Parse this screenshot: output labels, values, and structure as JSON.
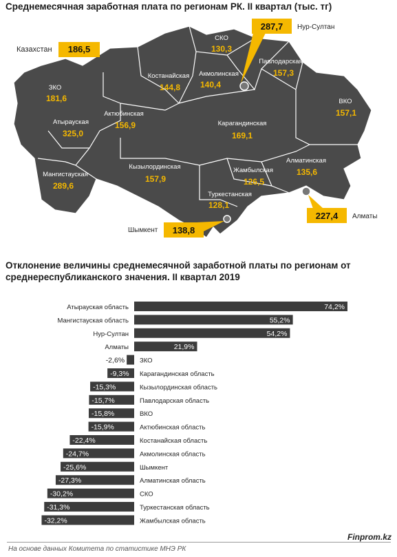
{
  "titles": {
    "map": "Среднемесячная заработная плата по регионам РК. II квартал (тыс. тг)",
    "bars": "Отклонение величины среднемесячной заработной платы по регионам от среднереспубликанского значения. II квартал 2019"
  },
  "national": {
    "label": "Казахстан",
    "value": "186,5"
  },
  "map_regions": [
    {
      "name": "СКО",
      "value": "130,3"
    },
    {
      "name": "Павлодарская",
      "value": "157,3"
    },
    {
      "name": "Костанайская",
      "value": "144,8"
    },
    {
      "name": "Акмолинская",
      "value": "140,4"
    },
    {
      "name": "ЗКО",
      "value": "181,6"
    },
    {
      "name": "ВКО",
      "value": "157,1"
    },
    {
      "name": "Актюбинская",
      "value": "156,9"
    },
    {
      "name": "Атырауская",
      "value": "325,0"
    },
    {
      "name": "Карагандинская",
      "value": "169,1"
    },
    {
      "name": "Алматинская",
      "value": "135,6"
    },
    {
      "name": "Мангистауская",
      "value": "289,6"
    },
    {
      "name": "Кызылординская",
      "value": "157,9"
    },
    {
      "name": "Жамбылская",
      "value": "126,5"
    },
    {
      "name": "Туркестанская",
      "value": "128,1"
    }
  ],
  "map_cities": [
    {
      "name": "Нур-Султан",
      "value": "287,7"
    },
    {
      "name": "Алматы",
      "value": "227,4"
    },
    {
      "name": "Шымкент",
      "value": "138,8"
    }
  ],
  "chart_data": {
    "type": "bar",
    "orientation": "horizontal",
    "title": "Отклонение величины среднемесячной заработной платы по регионам от среднереспубликанского значения. II квартал 2019",
    "unit": "%",
    "categories": [
      "Атырауская область",
      "Мангистауская область",
      "Нур-Султан",
      "Алматы",
      "ЗКО",
      "Карагандинская область",
      "Кызылординская область",
      "Павлодарская область",
      "ВКО",
      "Актюбинская область",
      "Костанайская область",
      "Акмолинская область",
      "Шымкент",
      "Алматинская область",
      "СКО",
      "Туркестанская область",
      "Жамбылская область"
    ],
    "values": [
      74.2,
      55.2,
      54.2,
      21.9,
      -2.6,
      -9.3,
      -15.3,
      -15.7,
      -15.8,
      -15.9,
      -22.4,
      -24.7,
      -25.6,
      -27.3,
      -30.2,
      -31.3,
      -32.2
    ],
    "labels": [
      "74,2%",
      "55,2%",
      "54,2%",
      "21,9%",
      "-2,6%",
      "-9,3%",
      "-15,3%",
      "-15,7%",
      "-15,8%",
      "-15,9%",
      "-22,4%",
      "-24,7%",
      "-25,6%",
      "-27,3%",
      "-30,2%",
      "-31,3%",
      "-32,2%"
    ],
    "bar_color": "#3c3c3c",
    "grid": false
  },
  "colors": {
    "region_fill": "#4a4a4a",
    "accent": "#f5b800",
    "value_text": "#f5b800"
  },
  "footer": {
    "source": "На основе данных Комитета по статистике МНЭ РК",
    "brand": "Finprom.kz"
  }
}
